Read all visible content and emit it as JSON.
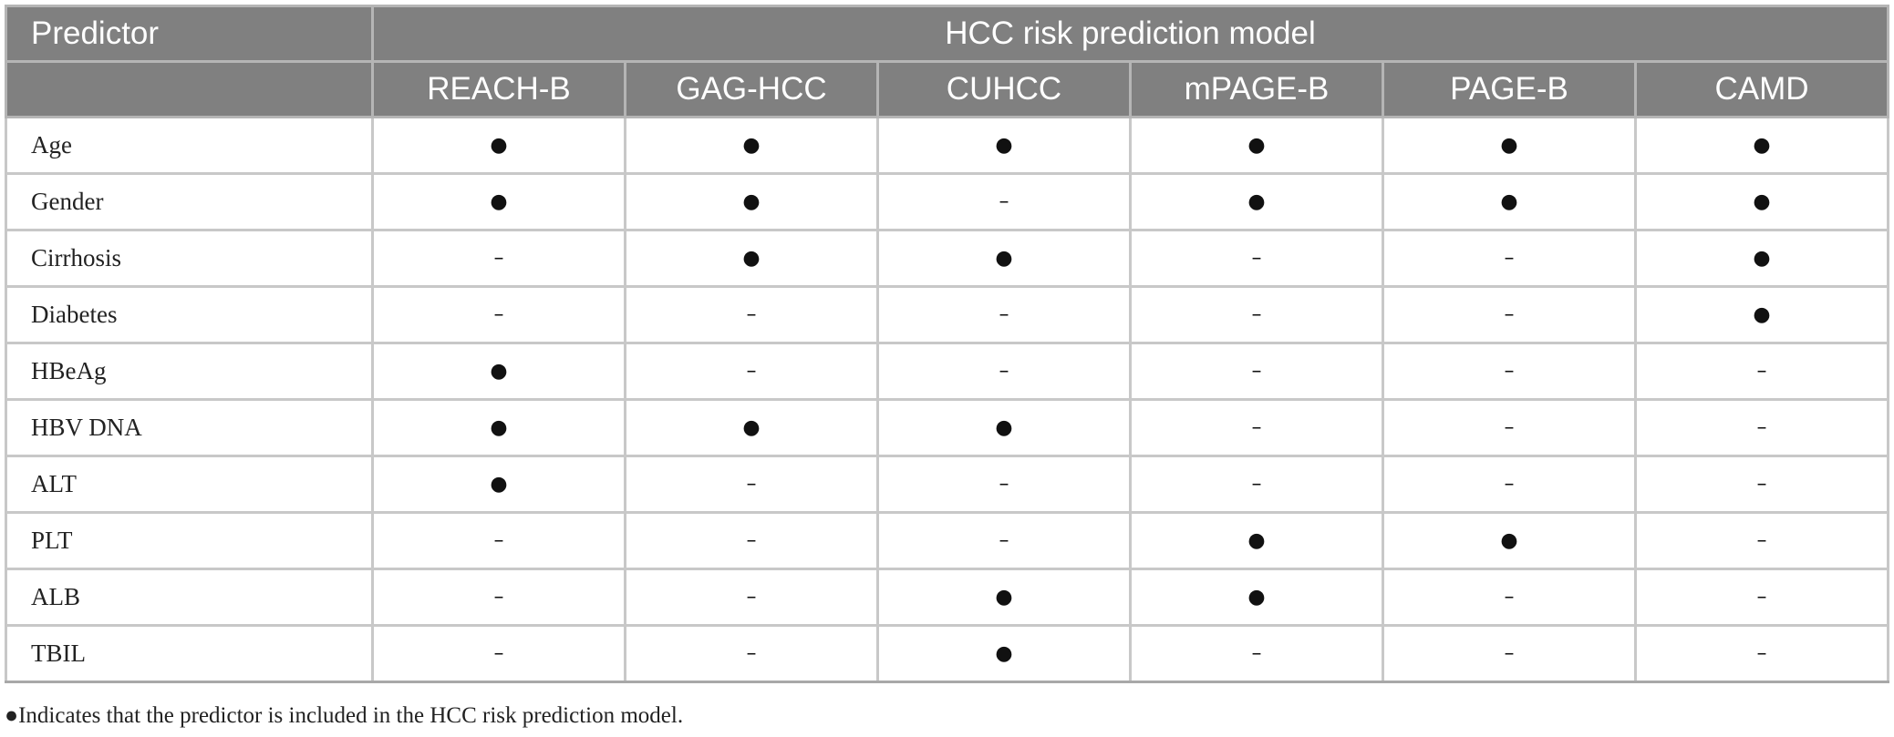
{
  "table": {
    "predictor_header": "Predictor",
    "group_header": "HCC risk prediction model",
    "models": [
      "REACH-B",
      "GAG-HCC",
      "CUHCC",
      "mPAGE-B",
      "PAGE-B",
      "CAMD"
    ],
    "rows": [
      {
        "predictor": "Age",
        "values": [
          "●",
          "●",
          "●",
          "●",
          "●",
          "●"
        ]
      },
      {
        "predictor": "Gender",
        "values": [
          "●",
          "●",
          "–",
          "●",
          "●",
          "●"
        ]
      },
      {
        "predictor": "Cirrhosis",
        "values": [
          "–",
          "●",
          "●",
          "–",
          "–",
          "●"
        ]
      },
      {
        "predictor": "Diabetes",
        "values": [
          "–",
          "–",
          "–",
          "–",
          "–",
          "●"
        ]
      },
      {
        "predictor": "HBeAg",
        "values": [
          "●",
          "–",
          "–",
          "–",
          "–",
          "–"
        ]
      },
      {
        "predictor": "HBV DNA",
        "values": [
          "●",
          "●",
          "●",
          "–",
          "–",
          "–"
        ]
      },
      {
        "predictor": "ALT",
        "values": [
          "●",
          "–",
          "–",
          "–",
          "–",
          "–"
        ]
      },
      {
        "predictor": "PLT",
        "values": [
          "–",
          "–",
          "–",
          "●",
          "●",
          "–"
        ]
      },
      {
        "predictor": "ALB",
        "values": [
          "–",
          "–",
          "●",
          "●",
          "–",
          "–"
        ]
      },
      {
        "predictor": "TBIL",
        "values": [
          "–",
          "–",
          "●",
          "–",
          "–",
          "–"
        ]
      }
    ]
  },
  "footnote": "●Indicates that the predictor is included in the HCC risk prediction model."
}
